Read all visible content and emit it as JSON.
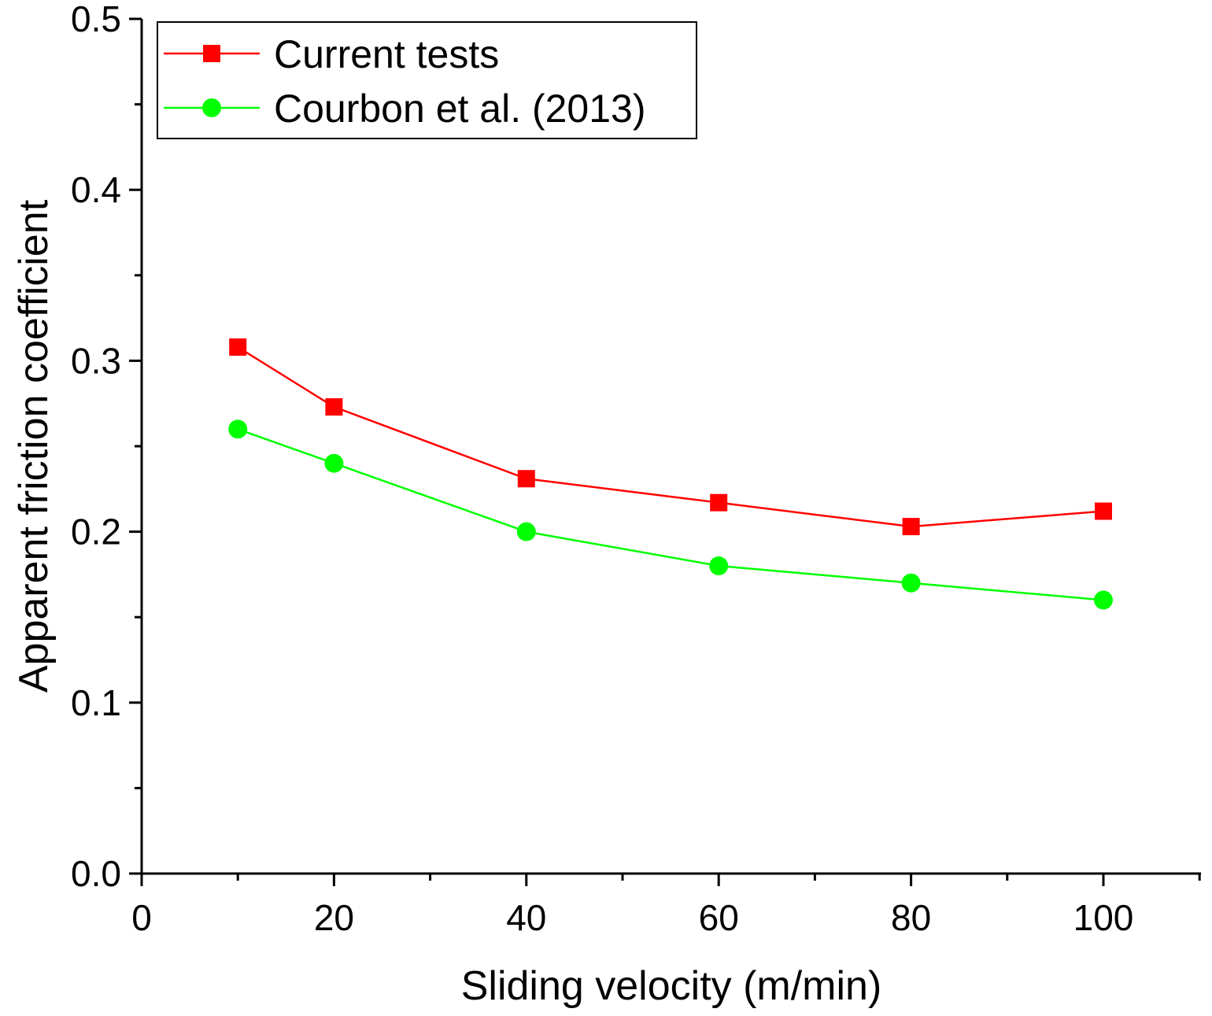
{
  "chart_data": {
    "type": "line",
    "title": "",
    "xlabel": "Sliding velocity (m/min)",
    "ylabel": "Apparent friction coefficient",
    "xlim": [
      0,
      110
    ],
    "ylim": [
      0,
      0.5
    ],
    "x_ticks": [
      0,
      20,
      40,
      60,
      80,
      100
    ],
    "x_tick_labels": [
      "0",
      "20",
      "40",
      "60",
      "80",
      "100"
    ],
    "y_ticks": [
      0.0,
      0.1,
      0.2,
      0.3,
      0.4,
      0.5
    ],
    "y_tick_labels": [
      "0.0",
      "0.1",
      "0.2",
      "0.3",
      "0.4",
      "0.5"
    ],
    "grid": false,
    "legend_position": "top-left",
    "series": [
      {
        "name": "Current tests",
        "color": "#ff0000",
        "marker": "square",
        "x": [
          10,
          20,
          40,
          60,
          80,
          100
        ],
        "y": [
          0.308,
          0.273,
          0.231,
          0.217,
          0.203,
          0.212
        ]
      },
      {
        "name": "Courbon et al. (2013)",
        "color": "#00ff00",
        "marker": "circle",
        "x": [
          10,
          20,
          40,
          60,
          80,
          100
        ],
        "y": [
          0.26,
          0.24,
          0.2,
          0.18,
          0.17,
          0.16
        ]
      }
    ]
  }
}
